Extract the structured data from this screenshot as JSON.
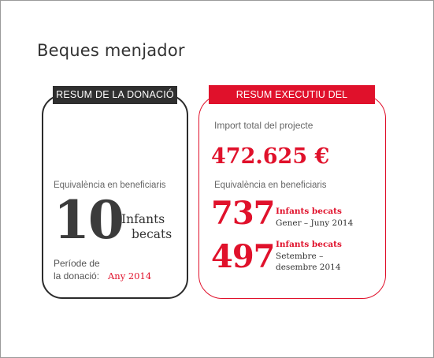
{
  "page": {
    "title": "Beques menjador"
  },
  "donation_summary": {
    "label": "RESUM DE LA DONACIÓ",
    "equivalence_label": "Equivalència en beneficiaris",
    "beneficiaries_number": "10",
    "unit_line1": "Infants",
    "unit_line2": "becats",
    "period_line1": "Període de",
    "period_line2": "la donació:",
    "period_value": "Any 2014"
  },
  "project_summary": {
    "label": "RESUM EXECUTIU DEL PROJECTE",
    "import_label": "Import total del projecte",
    "import_value": "472.625 €",
    "equivalence_label": "Equivalència en beneficiaris",
    "items": [
      {
        "number": "737",
        "label": "Infants becats",
        "period": "Gener – Juny 2014"
      },
      {
        "number": "497",
        "label": "Infants becats",
        "period_line1": "Setembre –",
        "period_line2": "desembre  2014"
      }
    ]
  },
  "colors": {
    "accent": "#e0112b",
    "dark": "#2f2f2f"
  }
}
